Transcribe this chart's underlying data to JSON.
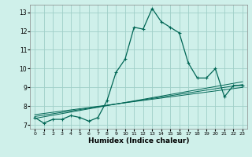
{
  "xlabel": "Humidex (Indice chaleur)",
  "ylabel": "",
  "background_color": "#cff0ea",
  "grid_color": "#a0cfc8",
  "line_color": "#006655",
  "xlim": [
    -0.5,
    23.5
  ],
  "ylim": [
    6.8,
    13.4
  ],
  "xticks": [
    0,
    1,
    2,
    3,
    4,
    5,
    6,
    7,
    8,
    9,
    10,
    11,
    12,
    13,
    14,
    15,
    16,
    17,
    18,
    19,
    20,
    21,
    22,
    23
  ],
  "yticks": [
    7,
    8,
    9,
    10,
    11,
    12,
    13
  ],
  "main_curve": [
    [
      0,
      7.4
    ],
    [
      1,
      7.1
    ],
    [
      2,
      7.3
    ],
    [
      3,
      7.3
    ],
    [
      4,
      7.5
    ],
    [
      5,
      7.4
    ],
    [
      6,
      7.2
    ],
    [
      7,
      7.4
    ],
    [
      8,
      8.3
    ],
    [
      9,
      9.8
    ],
    [
      10,
      10.5
    ],
    [
      11,
      12.2
    ],
    [
      12,
      12.1
    ],
    [
      13,
      13.2
    ],
    [
      14,
      12.5
    ],
    [
      15,
      12.2
    ],
    [
      16,
      11.9
    ],
    [
      17,
      10.3
    ],
    [
      18,
      9.5
    ],
    [
      19,
      9.5
    ],
    [
      20,
      10.0
    ],
    [
      21,
      8.5
    ],
    [
      22,
      9.1
    ],
    [
      23,
      9.1
    ]
  ],
  "regression_lines": [
    [
      [
        0,
        7.55
      ],
      [
        23,
        9.0
      ]
    ],
    [
      [
        0,
        7.45
      ],
      [
        23,
        9.15
      ]
    ],
    [
      [
        0,
        7.35
      ],
      [
        23,
        9.3
      ]
    ]
  ]
}
